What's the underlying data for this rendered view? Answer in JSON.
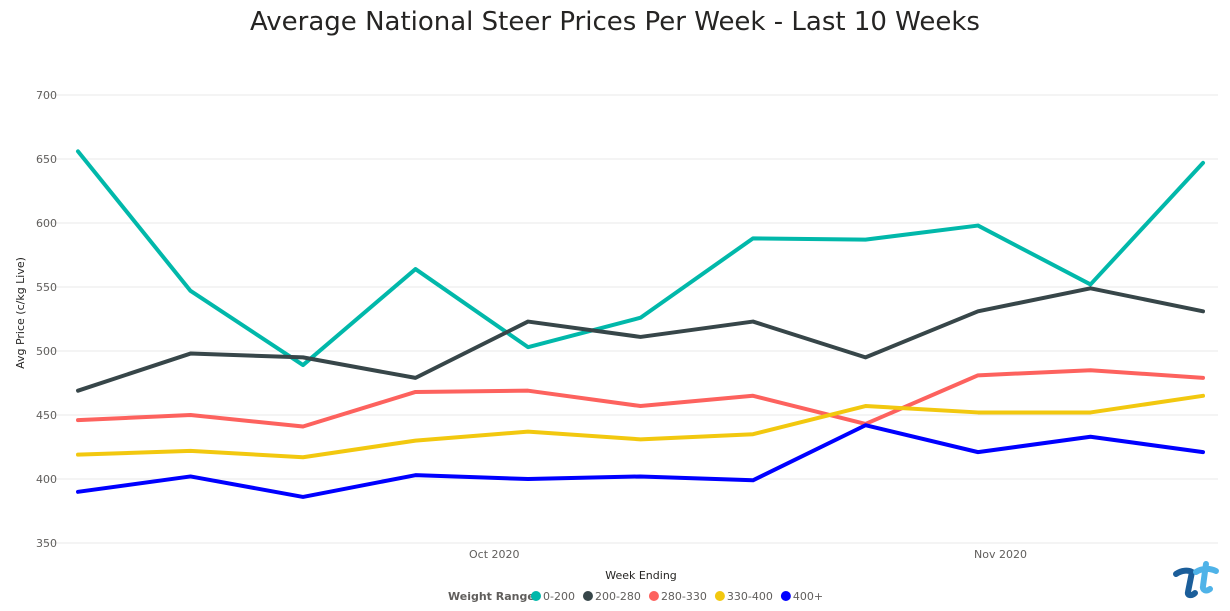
{
  "chart_data": {
    "type": "line",
    "title": "Average National Steer Prices Per Week - Last 10 Weeks",
    "xlabel": "Week Ending",
    "ylabel": "Avg Price (c/kg Live)",
    "ylim": [
      350,
      700
    ],
    "yticks": [
      350,
      400,
      450,
      500,
      550,
      600,
      650,
      700
    ],
    "x_tick_labels": [
      "Oct 2020",
      "Nov 2020"
    ],
    "x_tick_positions": [
      3.7,
      8.2
    ],
    "grid": true,
    "legend_position": "bottom",
    "legend_title": "Weight Range",
    "categories": [
      1,
      2,
      3,
      4,
      5,
      6,
      7,
      8,
      9,
      10,
      11
    ],
    "series": [
      {
        "name": "0-200",
        "color": "#01B8AA",
        "values": [
          656,
          547,
          489,
          564,
          503,
          526,
          588,
          587,
          598,
          552,
          647
        ]
      },
      {
        "name": "200-280",
        "color": "#374649",
        "values": [
          469,
          498,
          495,
          479,
          523,
          511,
          523,
          495,
          531,
          549,
          531
        ]
      },
      {
        "name": "280-330",
        "color": "#FD625E",
        "values": [
          446,
          450,
          441,
          468,
          469,
          457,
          465,
          443,
          481,
          485,
          479
        ]
      },
      {
        "name": "330-400",
        "color": "#F2C80F",
        "values": [
          419,
          422,
          417,
          430,
          437,
          431,
          435,
          457,
          452,
          452,
          465
        ]
      },
      {
        "name": "400+",
        "color": "#0000FF",
        "values": [
          390,
          402,
          386,
          403,
          400,
          402,
          399,
          442,
          421,
          433,
          421
        ]
      }
    ]
  }
}
